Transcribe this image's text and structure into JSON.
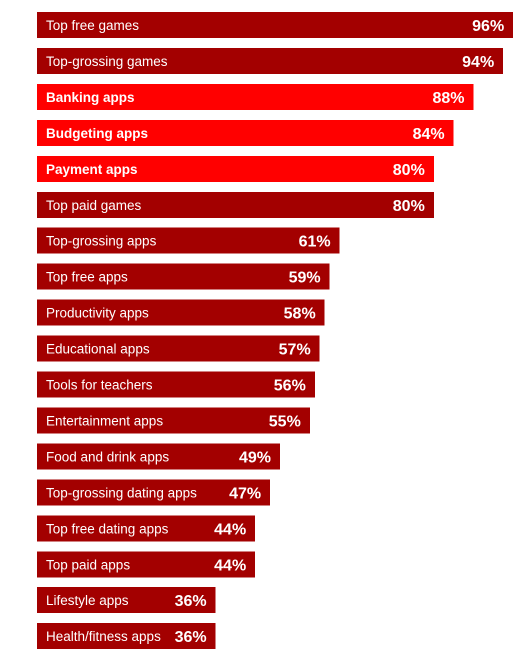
{
  "chart_data": {
    "type": "bar",
    "orientation": "horizontal",
    "categories": [
      "Top free games",
      "Top-grossing games",
      "Banking apps",
      "Budgeting apps",
      "Payment apps",
      "Top paid games",
      "Top-grossing apps",
      "Top free apps",
      "Productivity apps",
      "Educational apps",
      "Tools for teachers",
      "Entertainment apps",
      "Food and drink apps",
      "Top-grossing dating apps",
      "Top free dating apps",
      "Top paid apps",
      "Lifestyle apps",
      "Health/fitness apps"
    ],
    "values": [
      96,
      94,
      88,
      84,
      80,
      80,
      61,
      59,
      58,
      57,
      56,
      55,
      49,
      47,
      44,
      44,
      36,
      36
    ],
    "value_labels": [
      "96%",
      "94%",
      "88%",
      "84%",
      "80%",
      "80%",
      "61%",
      "59%",
      "58%",
      "57%",
      "56%",
      "55%",
      "49%",
      "47%",
      "44%",
      "44%",
      "36%",
      "36%"
    ],
    "highlighted": [
      false,
      false,
      true,
      true,
      true,
      false,
      false,
      false,
      false,
      false,
      false,
      false,
      false,
      false,
      false,
      false,
      false,
      false
    ],
    "xlim": [
      0,
      100
    ],
    "grid": false,
    "legend": "none",
    "colors": {
      "default": "#a30000",
      "highlight": "#ff0000"
    }
  }
}
